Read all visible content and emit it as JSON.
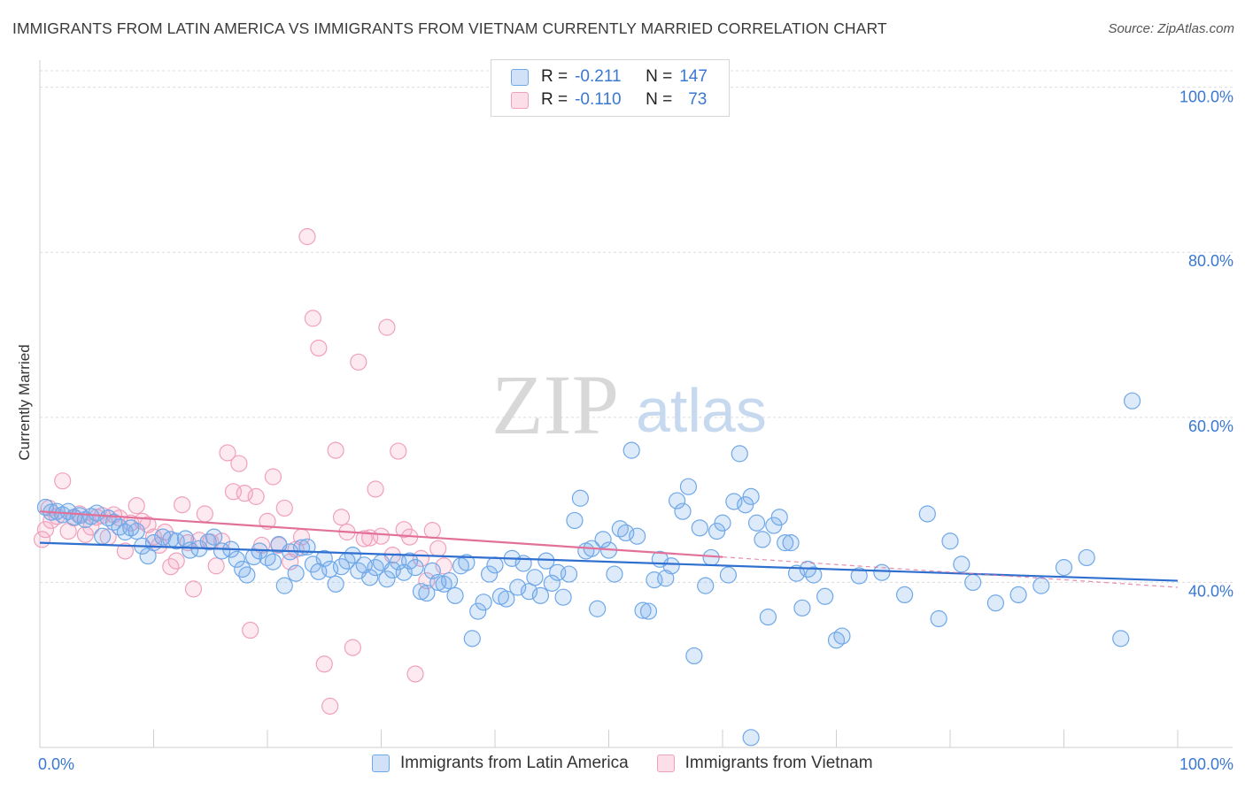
{
  "header": {
    "title": "IMMIGRANTS FROM LATIN AMERICA VS IMMIGRANTS FROM VIETNAM CURRENTLY MARRIED CORRELATION CHART",
    "source": "Source: ZipAtlas.com"
  },
  "watermark": {
    "zip": "ZIP",
    "atlas": "atlas"
  },
  "legend": {
    "rows": [
      {
        "r_label": "R =",
        "r_value": "-0.211",
        "n_label": "N =",
        "n_value": "147"
      },
      {
        "r_label": "R =",
        "r_value": "-0.110",
        "n_label": "N =",
        "n_value": "73"
      }
    ]
  },
  "colors": {
    "blue": "#6fa8e8",
    "blue_fill": "rgba(120,170,235,0.25)",
    "blue_line": "#2f6fcf",
    "pink": "#f0a0bb",
    "pink_fill": "rgba(244,160,190,0.22)",
    "pink_line": "#e2719a",
    "axis_text": "#3a78d1",
    "grid": "#dcdcdc"
  },
  "chart_data": {
    "type": "scatter",
    "title": "IMMIGRANTS FROM LATIN AMERICA VS IMMIGRANTS FROM VIETNAM CURRENTLY MARRIED CORRELATION CHART",
    "xlabel": "",
    "ylabel": "Currently Married",
    "xlim": [
      0,
      100
    ],
    "ylim": [
      20,
      102
    ],
    "x_tick_labels": [
      "0.0%",
      "100.0%"
    ],
    "y_ticks": [
      40,
      60,
      80,
      100
    ],
    "y_tick_labels": [
      "40.0%",
      "60.0%",
      "80.0%",
      "100.0%"
    ],
    "grid": true,
    "legend_position": "top-center",
    "series": [
      {
        "name": "Immigrants from Latin America",
        "color": "blue",
        "trend": {
          "x": [
            0,
            100
          ],
          "y": [
            44.8,
            40.2
          ],
          "dashed_from": null
        },
        "points": [
          [
            0.5,
            49.1
          ],
          [
            1,
            48.5
          ],
          [
            1.5,
            48.6
          ],
          [
            2,
            48.2
          ],
          [
            2.5,
            48.6
          ],
          [
            3,
            47.9
          ],
          [
            3.5,
            48.1
          ],
          [
            4,
            47.6
          ],
          [
            4.5,
            48.0
          ],
          [
            5,
            48.4
          ],
          [
            5.5,
            45.6
          ],
          [
            6,
            47.8
          ],
          [
            6.5,
            47.3
          ],
          [
            7,
            46.7
          ],
          [
            7.5,
            46.1
          ],
          [
            8,
            46.6
          ],
          [
            8.5,
            46.2
          ],
          [
            9,
            44.4
          ],
          [
            9.5,
            43.2
          ],
          [
            10,
            44.8
          ],
          [
            10.8,
            45.5
          ],
          [
            11.5,
            45.2
          ],
          [
            12,
            45.0
          ],
          [
            12.8,
            45.3
          ],
          [
            13.2,
            43.9
          ],
          [
            14,
            44.1
          ],
          [
            14.8,
            44.9
          ],
          [
            15.3,
            45.5
          ],
          [
            16,
            43.8
          ],
          [
            16.8,
            44.0
          ],
          [
            17.3,
            42.8
          ],
          [
            17.8,
            41.6
          ],
          [
            18.2,
            40.9
          ],
          [
            18.8,
            43.1
          ],
          [
            19.3,
            43.8
          ],
          [
            20,
            43.0
          ],
          [
            20.5,
            42.5
          ],
          [
            21,
            44.6
          ],
          [
            21.5,
            39.6
          ],
          [
            22,
            43.7
          ],
          [
            22.5,
            41.1
          ],
          [
            23,
            44.2
          ],
          [
            23.5,
            44.3
          ],
          [
            24,
            42.2
          ],
          [
            24.5,
            41.3
          ],
          [
            25,
            42.9
          ],
          [
            25.5,
            41.6
          ],
          [
            26,
            39.8
          ],
          [
            26.5,
            41.9
          ],
          [
            27,
            42.6
          ],
          [
            27.5,
            43.3
          ],
          [
            28,
            41.4
          ],
          [
            28.5,
            42.1
          ],
          [
            29,
            40.6
          ],
          [
            29.5,
            41.8
          ],
          [
            30,
            42.4
          ],
          [
            30.5,
            40.4
          ],
          [
            31,
            41.5
          ],
          [
            31.5,
            42.5
          ],
          [
            32,
            41.2
          ],
          [
            32.5,
            42.6
          ],
          [
            33,
            41.8
          ],
          [
            33.5,
            38.9
          ],
          [
            34,
            38.7
          ],
          [
            34.5,
            41.4
          ],
          [
            35,
            40.0
          ],
          [
            35.5,
            39.8
          ],
          [
            36,
            40.2
          ],
          [
            36.5,
            38.4
          ],
          [
            37,
            42.0
          ],
          [
            37.5,
            42.4
          ],
          [
            38,
            33.2
          ],
          [
            38.5,
            36.5
          ],
          [
            39,
            37.6
          ],
          [
            39.5,
            41.0
          ],
          [
            40,
            42.1
          ],
          [
            40.5,
            38.3
          ],
          [
            41,
            38.0
          ],
          [
            41.5,
            42.9
          ],
          [
            42,
            39.4
          ],
          [
            42.5,
            42.3
          ],
          [
            43,
            38.9
          ],
          [
            43.5,
            40.6
          ],
          [
            44,
            38.4
          ],
          [
            44.5,
            42.6
          ],
          [
            45,
            39.9
          ],
          [
            45.5,
            41.2
          ],
          [
            46,
            38.2
          ],
          [
            46.5,
            41.0
          ],
          [
            47,
            47.5
          ],
          [
            47.5,
            50.2
          ],
          [
            48,
            43.8
          ],
          [
            48.5,
            44.1
          ],
          [
            49,
            36.8
          ],
          [
            49.5,
            45.2
          ],
          [
            50,
            43.9
          ],
          [
            50.5,
            41.0
          ],
          [
            51,
            46.5
          ],
          [
            51.5,
            46.0
          ],
          [
            52,
            56.0
          ],
          [
            52.5,
            45.6
          ],
          [
            53,
            36.6
          ],
          [
            53.5,
            36.5
          ],
          [
            54,
            40.3
          ],
          [
            54.5,
            42.8
          ],
          [
            55,
            40.5
          ],
          [
            55.5,
            42.0
          ],
          [
            56,
            49.9
          ],
          [
            56.5,
            48.6
          ],
          [
            57,
            51.6
          ],
          [
            57.5,
            31.1
          ],
          [
            58,
            46.6
          ],
          [
            58.5,
            39.6
          ],
          [
            59,
            43.0
          ],
          [
            59.5,
            46.2
          ],
          [
            60,
            47.2
          ],
          [
            60.5,
            40.9
          ],
          [
            61,
            49.8
          ],
          [
            61.5,
            55.6
          ],
          [
            62,
            49.4
          ],
          [
            62.5,
            50.4
          ],
          [
            63,
            47.2
          ],
          [
            63.5,
            45.2
          ],
          [
            64,
            35.8
          ],
          [
            64.5,
            46.9
          ],
          [
            65,
            47.9
          ],
          [
            65.5,
            44.8
          ],
          [
            66,
            44.8
          ],
          [
            66.5,
            41.1
          ],
          [
            67,
            36.9
          ],
          [
            67.5,
            41.6
          ],
          [
            68,
            40.9
          ],
          [
            69,
            38.3
          ],
          [
            70,
            33.0
          ],
          [
            70.5,
            33.5
          ],
          [
            78,
            48.3
          ],
          [
            79,
            35.6
          ],
          [
            80,
            45.0
          ],
          [
            81,
            42.2
          ],
          [
            82,
            40.0
          ],
          [
            96,
            62.0
          ],
          [
            95,
            33.2
          ],
          [
            84,
            37.5
          ],
          [
            86,
            38.5
          ],
          [
            88,
            39.6
          ],
          [
            90,
            41.8
          ],
          [
            92,
            43.0
          ],
          [
            76,
            38.5
          ],
          [
            74,
            41.2
          ],
          [
            72,
            40.8
          ],
          [
            62.5,
            21.2
          ]
        ]
      },
      {
        "name": "Immigrants from Vietnam",
        "color": "pink",
        "trend": {
          "x": [
            0,
            100
          ],
          "y": [
            48.6,
            39.4
          ],
          "dashed_from": 60
        },
        "points": [
          [
            0.2,
            45.2
          ],
          [
            0.5,
            46.4
          ],
          [
            0.8,
            49.0
          ],
          [
            1,
            47.5
          ],
          [
            1.5,
            48.0
          ],
          [
            2,
            52.3
          ],
          [
            2.5,
            46.2
          ],
          [
            3,
            47.8
          ],
          [
            3.5,
            48.3
          ],
          [
            4,
            45.8
          ],
          [
            4.5,
            46.7
          ],
          [
            5,
            47.9
          ],
          [
            5.5,
            48.1
          ],
          [
            6,
            45.5
          ],
          [
            6.5,
            48.2
          ],
          [
            7,
            47.8
          ],
          [
            7.5,
            43.8
          ],
          [
            8,
            47.2
          ],
          [
            8.5,
            49.3
          ],
          [
            9,
            47.4
          ],
          [
            9.5,
            47.0
          ],
          [
            10,
            45.5
          ],
          [
            10.5,
            44.5
          ],
          [
            11,
            46.1
          ],
          [
            11.5,
            41.9
          ],
          [
            12,
            42.6
          ],
          [
            12.5,
            49.4
          ],
          [
            13,
            44.8
          ],
          [
            13.5,
            39.2
          ],
          [
            14,
            45.1
          ],
          [
            14.5,
            48.3
          ],
          [
            15,
            44.9
          ],
          [
            15.5,
            42.0
          ],
          [
            16,
            45.0
          ],
          [
            16.5,
            55.7
          ],
          [
            17,
            51.0
          ],
          [
            17.5,
            54.4
          ],
          [
            18,
            50.8
          ],
          [
            18.5,
            34.2
          ],
          [
            19,
            50.4
          ],
          [
            19.5,
            44.5
          ],
          [
            20,
            47.4
          ],
          [
            20.5,
            52.8
          ],
          [
            21,
            44.5
          ],
          [
            21.5,
            49.0
          ],
          [
            22,
            42.5
          ],
          [
            22.5,
            44.0
          ],
          [
            23,
            45.5
          ],
          [
            23.5,
            81.9
          ],
          [
            24,
            72.0
          ],
          [
            24.5,
            68.4
          ],
          [
            25,
            30.1
          ],
          [
            25.5,
            25.0
          ],
          [
            26,
            56.0
          ],
          [
            26.5,
            47.9
          ],
          [
            27,
            46.1
          ],
          [
            27.5,
            32.1
          ],
          [
            28,
            66.7
          ],
          [
            28.5,
            45.3
          ],
          [
            29,
            45.4
          ],
          [
            29.5,
            51.3
          ],
          [
            30,
            45.6
          ],
          [
            30.5,
            70.9
          ],
          [
            31,
            43.3
          ],
          [
            31.5,
            55.9
          ],
          [
            32,
            46.4
          ],
          [
            32.5,
            45.5
          ],
          [
            33,
            28.9
          ],
          [
            33.5,
            42.9
          ],
          [
            34,
            40.2
          ],
          [
            34.5,
            46.3
          ],
          [
            35,
            44.1
          ],
          [
            35.5,
            42.0
          ]
        ]
      }
    ]
  },
  "bottom_legend": {
    "items": [
      {
        "label": "Immigrants from Latin America"
      },
      {
        "label": "Immigrants from Vietnam"
      }
    ]
  }
}
